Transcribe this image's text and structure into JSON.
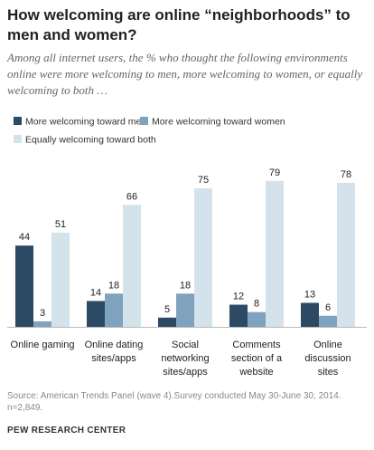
{
  "title": "How welcoming are online “neighborhoods” to men and women?",
  "subtitle": "Among all internet users, the % who thought the following environments online were more welcoming to men, more welcoming to women, or equally welcoming to both …",
  "source": "Source: American Trends Panel (wave 4).Survey conducted May 30-June 30, 2014. n=2,849.",
  "brand": "PEW RESEARCH CENTER",
  "chart_data": {
    "type": "bar",
    "categories": [
      [
        "Online gaming"
      ],
      [
        "Online dating",
        "sites/apps"
      ],
      [
        "Social",
        "networking",
        "sites/apps"
      ],
      [
        "Comments",
        "section of a",
        "website"
      ],
      [
        "Online",
        "discussion",
        "sites"
      ]
    ],
    "series": [
      {
        "name": "More welcoming toward men",
        "color": "#2c4a63",
        "values": [
          44,
          14,
          5,
          12,
          13
        ]
      },
      {
        "name": "More welcoming toward women",
        "color": "#7fa3be",
        "values": [
          3,
          18,
          18,
          8,
          6
        ]
      },
      {
        "name": "Equally welcoming toward both",
        "color": "#d4e2ec",
        "values": [
          51,
          66,
          75,
          79,
          78
        ]
      }
    ],
    "ylim": [
      0,
      100
    ],
    "grid": false,
    "legend": "top-left"
  }
}
